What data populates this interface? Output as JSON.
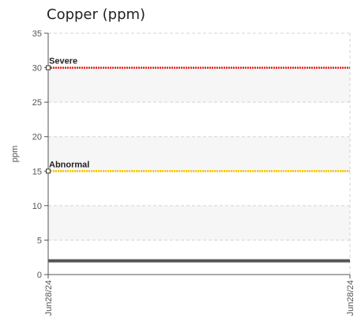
{
  "chart_data": {
    "type": "line",
    "title": "Copper (ppm)",
    "ylabel": "ppm",
    "xlabel": "",
    "ylim": [
      0,
      35
    ],
    "yticks": [
      0,
      5,
      10,
      15,
      20,
      25,
      30,
      35
    ],
    "x_ticks": [
      "Jun28/24",
      "Jun28/24"
    ],
    "grid": true,
    "series": [
      {
        "values": [
          2,
          2
        ],
        "color": "#555555"
      }
    ],
    "thresholds": [
      {
        "label": "Severe",
        "value": 30,
        "color": "#e8211b"
      },
      {
        "label": "Abnormal",
        "value": 15,
        "color": "#f5c400"
      }
    ]
  }
}
